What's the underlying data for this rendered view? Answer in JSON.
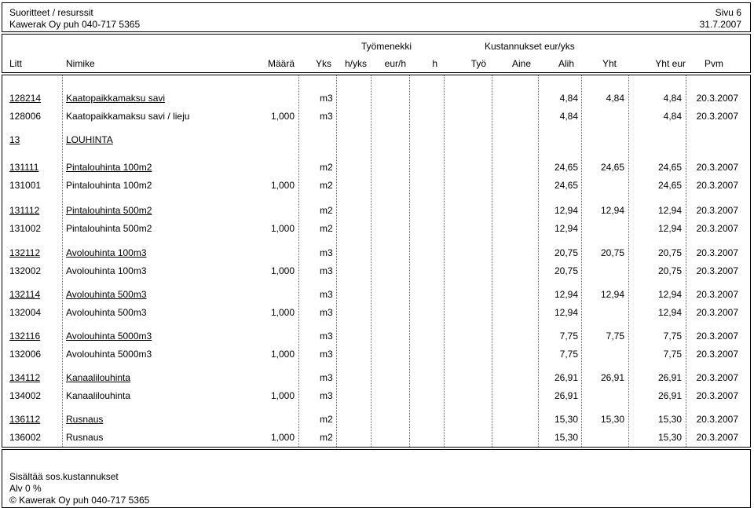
{
  "header": {
    "title": "Suoritteet / resurssit",
    "company": "Kawerak Oy puh 040-717 5365",
    "page": "Sivu 6",
    "date": "31.7.2007"
  },
  "group_headers": {
    "tyomenekki": "Työmenekki",
    "kustannukset": "Kustannukset eur/yks"
  },
  "columns": {
    "litt": "Litt",
    "nimike": "Nimike",
    "maara": "Määrä",
    "yks": "Yks",
    "hyks": "h/yks",
    "eurh": "eur/h",
    "h": "h",
    "tyo": "Työ",
    "aine": "Aine",
    "alih": "Alih",
    "yht": "Yht",
    "yhteur": "Yht eur",
    "pvm": "Pvm"
  },
  "rows": [
    {
      "litt": "128214",
      "nimike": "Kaatopaikkamaksu savi",
      "maara": "",
      "yks": "m3",
      "alih": "4,84",
      "yht": "4,84",
      "yhteur": "4,84",
      "pvm": "20.3.2007"
    },
    {
      "litt": "128006",
      "nimike": "Kaatopaikkamaksu savi / lieju",
      "maara": "1,000",
      "yks": "m3",
      "alih": "4,84",
      "yht": "",
      "yhteur": "4,84",
      "pvm": "20.3.2007"
    },
    {
      "litt": "13",
      "nimike": "LOUHINTA",
      "maara": "",
      "yks": "",
      "alih": "",
      "yht": "",
      "yhteur": "",
      "pvm": ""
    },
    {
      "litt": "131111",
      "nimike": "Pintalouhinta 100m2",
      "maara": "",
      "yks": "m2",
      "alih": "24,65",
      "yht": "24,65",
      "yhteur": "24,65",
      "pvm": "20.3.2007"
    },
    {
      "litt": "131001",
      "nimike": "Pintalouhinta 100m2",
      "maara": "1,000",
      "yks": "m2",
      "alih": "24,65",
      "yht": "",
      "yhteur": "24,65",
      "pvm": "20.3.2007"
    },
    {
      "litt": "131112",
      "nimike": "Pintalouhinta 500m2",
      "maara": "",
      "yks": "m2",
      "alih": "12,94",
      "yht": "12,94",
      "yhteur": "12,94",
      "pvm": "20.3.2007"
    },
    {
      "litt": "131002",
      "nimike": "Pintalouhinta 500m2",
      "maara": "1,000",
      "yks": "m2",
      "alih": "12,94",
      "yht": "",
      "yhteur": "12,94",
      "pvm": "20.3.2007"
    },
    {
      "litt": "132112",
      "nimike": "Avolouhinta 100m3",
      "maara": "",
      "yks": "m3",
      "alih": "20,75",
      "yht": "20,75",
      "yhteur": "20,75",
      "pvm": "20.3.2007"
    },
    {
      "litt": "132002",
      "nimike": "Avolouhinta 100m3",
      "maara": "1,000",
      "yks": "m3",
      "alih": "20,75",
      "yht": "",
      "yhteur": "20,75",
      "pvm": "20.3.2007"
    },
    {
      "litt": "132114",
      "nimike": "Avolouhinta 500m3",
      "maara": "",
      "yks": "m3",
      "alih": "12,94",
      "yht": "12,94",
      "yhteur": "12,94",
      "pvm": "20.3.2007"
    },
    {
      "litt": "132004",
      "nimike": "Avolouhinta 500m3",
      "maara": "1,000",
      "yks": "m3",
      "alih": "12,94",
      "yht": "",
      "yhteur": "12,94",
      "pvm": "20.3.2007"
    },
    {
      "litt": "132116",
      "nimike": "Avolouhinta 5000m3",
      "maara": "",
      "yks": "m3",
      "alih": "7,75",
      "yht": "7,75",
      "yhteur": "7,75",
      "pvm": "20.3.2007"
    },
    {
      "litt": "132006",
      "nimike": "Avolouhinta 5000m3",
      "maara": "1,000",
      "yks": "m3",
      "alih": "7,75",
      "yht": "",
      "yhteur": "7,75",
      "pvm": "20.3.2007"
    },
    {
      "litt": "134112",
      "nimike": "Kanaalilouhinta",
      "maara": "",
      "yks": "m3",
      "alih": "26,91",
      "yht": "26,91",
      "yhteur": "26,91",
      "pvm": "20.3.2007"
    },
    {
      "litt": "134002",
      "nimike": "Kanaalilouhinta",
      "maara": "1,000",
      "yks": "m3",
      "alih": "26,91",
      "yht": "",
      "yhteur": "26,91",
      "pvm": "20.3.2007"
    },
    {
      "litt": "136112",
      "nimike": "Rusnaus",
      "maara": "",
      "yks": "m2",
      "alih": "15,30",
      "yht": "15,30",
      "yhteur": "15,30",
      "pvm": "20.3.2007"
    },
    {
      "litt": "136002",
      "nimike": "Rusnaus",
      "maara": "1,000",
      "yks": "m2",
      "alih": "15,30",
      "yht": "",
      "yhteur": "15,30",
      "pvm": "20.3.2007"
    }
  ],
  "footer": {
    "line1": "Sisältää sos.kustannukset",
    "line2": "Alv 0 %",
    "copyright": "©  Kawerak Oy puh 040-717 5365"
  }
}
